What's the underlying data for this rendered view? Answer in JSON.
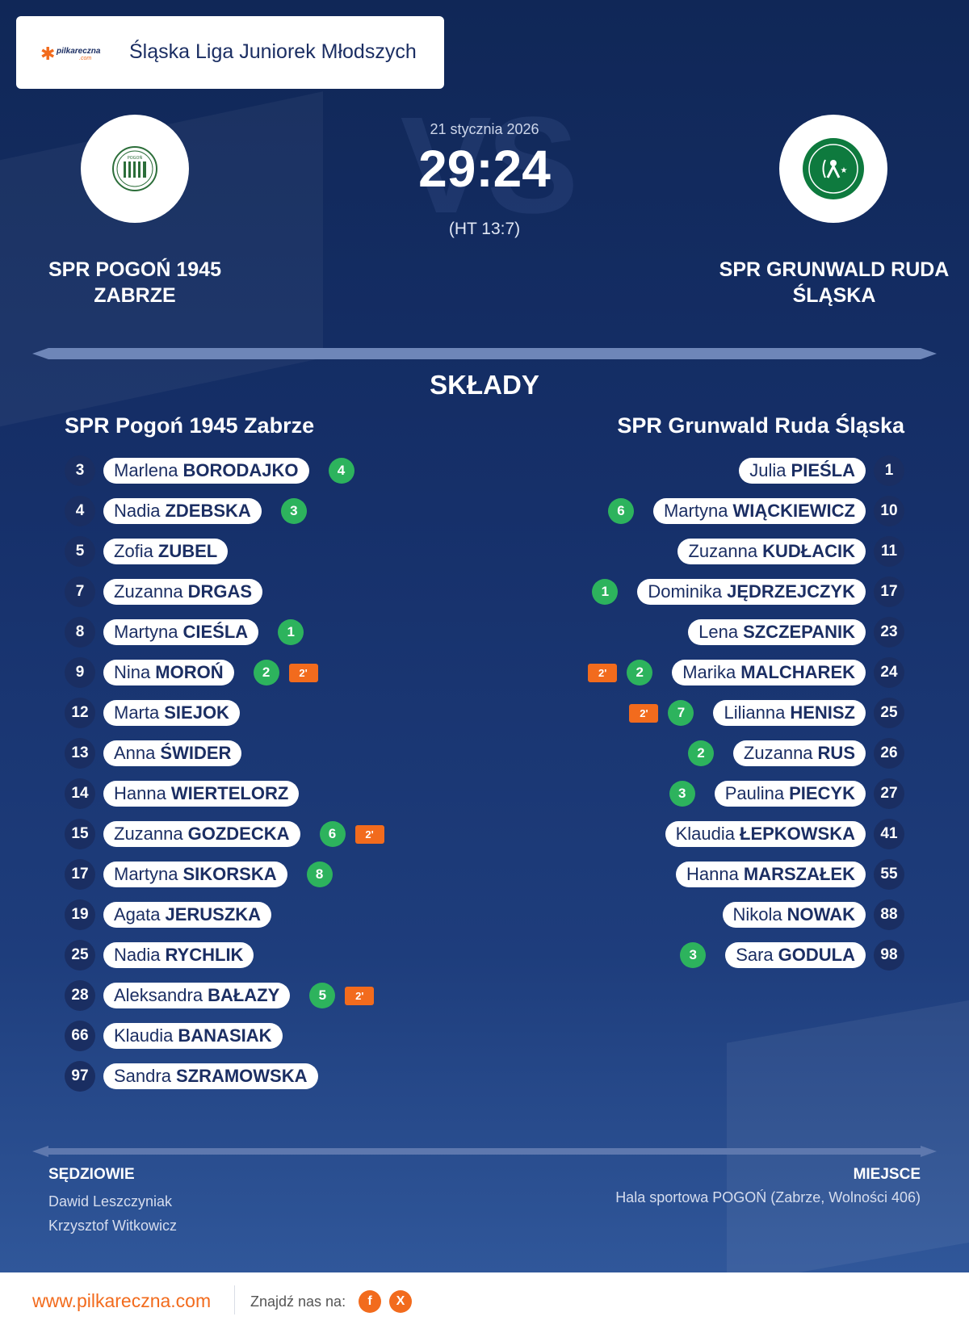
{
  "league": {
    "logo_text": "pilkareczna",
    "logo_suffix": ".com",
    "name": "Śląska Liga Juniorek Młodszych"
  },
  "match": {
    "date": "21 stycznia 2026",
    "score": "29:24",
    "half_time": "(HT 13:7)",
    "watermark": "VS"
  },
  "home": {
    "name_banner": "SPR POGOŃ 1945 ZABRZE",
    "name": "SPR Pogoń 1945 Zabrze",
    "crest_text": "POGOŃ 1945 ZABRZE",
    "players": [
      {
        "number": "3",
        "first": "Marlena",
        "last": "BORODAJKO",
        "goals": "4",
        "penalty": ""
      },
      {
        "number": "4",
        "first": "Nadia",
        "last": "ZDEBSKA",
        "goals": "3",
        "penalty": ""
      },
      {
        "number": "5",
        "first": "Zofia",
        "last": "ZUBEL",
        "goals": "",
        "penalty": ""
      },
      {
        "number": "7",
        "first": "Zuzanna",
        "last": "DRGAS",
        "goals": "",
        "penalty": ""
      },
      {
        "number": "8",
        "first": "Martyna",
        "last": "CIEŚLA",
        "goals": "1",
        "penalty": ""
      },
      {
        "number": "9",
        "first": "Nina",
        "last": "MOROŃ",
        "goals": "2",
        "penalty": "2'"
      },
      {
        "number": "12",
        "first": "Marta",
        "last": "SIEJOK",
        "goals": "",
        "penalty": ""
      },
      {
        "number": "13",
        "first": "Anna",
        "last": "ŚWIDER",
        "goals": "",
        "penalty": ""
      },
      {
        "number": "14",
        "first": "Hanna",
        "last": "WIERTELORZ",
        "goals": "",
        "penalty": ""
      },
      {
        "number": "15",
        "first": "Zuzanna",
        "last": "GOZDECKA",
        "goals": "6",
        "penalty": "2'"
      },
      {
        "number": "17",
        "first": "Martyna",
        "last": "SIKORSKA",
        "goals": "8",
        "penalty": ""
      },
      {
        "number": "19",
        "first": "Agata",
        "last": "JERUSZKA",
        "goals": "",
        "penalty": ""
      },
      {
        "number": "25",
        "first": "Nadia",
        "last": "RYCHLIK",
        "goals": "",
        "penalty": ""
      },
      {
        "number": "28",
        "first": "Aleksandra",
        "last": "BAŁAZY",
        "goals": "5",
        "penalty": "2'"
      },
      {
        "number": "66",
        "first": "Klaudia",
        "last": "BANASIAK",
        "goals": "",
        "penalty": ""
      },
      {
        "number": "97",
        "first": "Sandra",
        "last": "SZRAMOWSKA",
        "goals": "",
        "penalty": ""
      }
    ]
  },
  "away": {
    "name_banner": "SPR GRUNWALD RUDA ŚLĄSKA",
    "name": "SPR Grunwald Ruda Śląska",
    "crest_text": "SPR GRUNWALD RUDA ŚLĄSKA",
    "players": [
      {
        "number": "1",
        "first": "Julia",
        "last": "PIEŚLA",
        "goals": "",
        "penalty": ""
      },
      {
        "number": "10",
        "first": "Martyna",
        "last": "WIĄCKIEWICZ",
        "goals": "6",
        "penalty": ""
      },
      {
        "number": "11",
        "first": "Zuzanna",
        "last": "KUDŁACIK",
        "goals": "",
        "penalty": ""
      },
      {
        "number": "17",
        "first": "Dominika",
        "last": "JĘDRZEJCZYK",
        "goals": "1",
        "penalty": ""
      },
      {
        "number": "23",
        "first": "Lena",
        "last": "SZCZEPANIK",
        "goals": "",
        "penalty": ""
      },
      {
        "number": "24",
        "first": "Marika",
        "last": "MALCHAREK",
        "goals": "2",
        "penalty": "2'"
      },
      {
        "number": "25",
        "first": "Lilianna",
        "last": "HENISZ",
        "goals": "7",
        "penalty": "2'"
      },
      {
        "number": "26",
        "first": "Zuzanna",
        "last": "RUS",
        "goals": "2",
        "penalty": ""
      },
      {
        "number": "27",
        "first": "Paulina",
        "last": "PIECYK",
        "goals": "3",
        "penalty": ""
      },
      {
        "number": "41",
        "first": "Klaudia",
        "last": "ŁEPKOWSKA",
        "goals": "",
        "penalty": ""
      },
      {
        "number": "55",
        "first": "Hanna",
        "last": "MARSZAŁEK",
        "goals": "",
        "penalty": ""
      },
      {
        "number": "88",
        "first": "Nikola",
        "last": "NOWAK",
        "goals": "",
        "penalty": ""
      },
      {
        "number": "98",
        "first": "Sara",
        "last": "GODULA",
        "goals": "3",
        "penalty": ""
      }
    ]
  },
  "lineups_title": "SKŁADY",
  "referees": {
    "title": "SĘDZIOWIE",
    "names": [
      "Dawid Leszczyniak",
      "Krzysztof Witkowicz"
    ]
  },
  "venue": {
    "title": "MIEJSCE",
    "name": "Hala sportowa POGOŃ (Zabrze, Wolności 406)"
  },
  "footer": {
    "site": "www.pilkareczna.com",
    "find_us": "Znajdź nas na:",
    "facebook": "f",
    "x": "X"
  },
  "colors": {
    "background": "#16306a",
    "accent": "#f26b1d",
    "goals": "#2db35d",
    "navy": "#1b2e63"
  },
  "icons": [
    "facebook-icon",
    "x-icon",
    "team-crest-home",
    "team-crest-away",
    "league-logo"
  ]
}
